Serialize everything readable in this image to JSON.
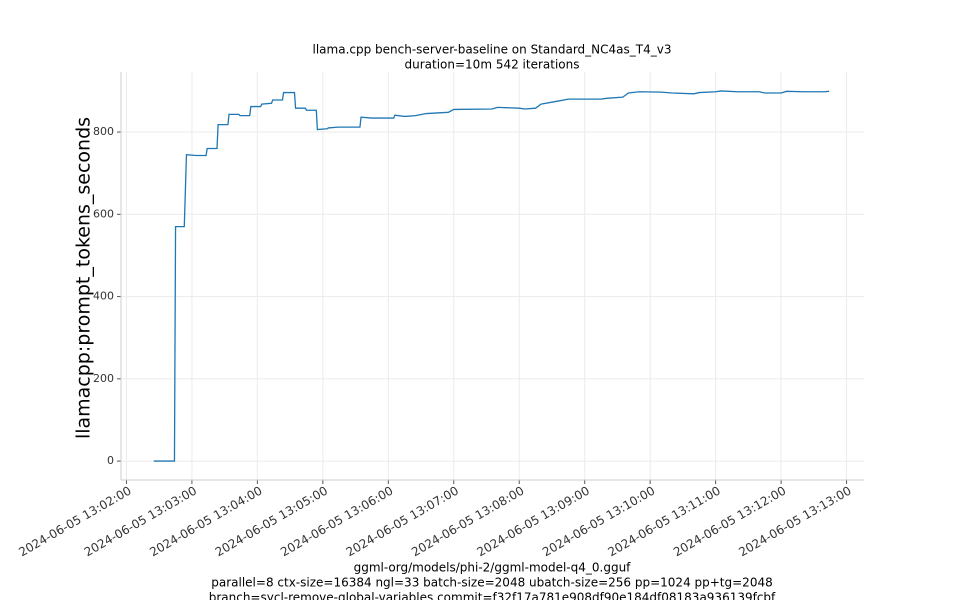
{
  "chart_data": {
    "type": "line",
    "title": "llama.cpp bench-server-baseline on Standard_NC4as_T4_v3",
    "subtitle": "duration=10m 542 iterations",
    "y_label": "llamacpp:prompt_tokens_seconds",
    "footer": [
      "ggml-org/models/phi-2/ggml-model-q4_0.gguf",
      "parallel=8 ctx-size=16384 ngl=33 batch-size=2048 ubatch-size=256 pp=1024 pp+tg=2048",
      "branch=sycl-remove-global-variables commit=f32f17a781e908df90e184df08183a936139fcbf"
    ],
    "color": "#1f77b4",
    "grid": true,
    "x": [
      "2024-06-05 13:02:25",
      "2024-06-05 13:02:44",
      "2024-06-05 13:02:45",
      "2024-06-05 13:02:53",
      "2024-06-05 13:02:55",
      "2024-06-05 13:03:04",
      "2024-06-05 13:03:13",
      "2024-06-05 13:03:14",
      "2024-06-05 13:03:23",
      "2024-06-05 13:03:24",
      "2024-06-05 13:03:33",
      "2024-06-05 13:03:34",
      "2024-06-05 13:03:43",
      "2024-06-05 13:03:44",
      "2024-06-05 13:03:53",
      "2024-06-05 13:03:54",
      "2024-06-05 13:04:03",
      "2024-06-05 13:04:04",
      "2024-06-05 13:04:13",
      "2024-06-05 13:04:14",
      "2024-06-05 13:04:23",
      "2024-06-05 13:04:24",
      "2024-06-05 13:04:34",
      "2024-06-05 13:04:35",
      "2024-06-05 13:04:44",
      "2024-06-05 13:04:45",
      "2024-06-05 13:04:54",
      "2024-06-05 13:04:55",
      "2024-06-05 13:05:04",
      "2024-06-05 13:05:05",
      "2024-06-05 13:05:14",
      "2024-06-05 13:05:34",
      "2024-06-05 13:05:35",
      "2024-06-05 13:05:45",
      "2024-06-05 13:06:05",
      "2024-06-05 13:06:06",
      "2024-06-05 13:06:15",
      "2024-06-05 13:06:25",
      "2024-06-05 13:06:35",
      "2024-06-05 13:06:55",
      "2024-06-05 13:07:00",
      "2024-06-05 13:07:35",
      "2024-06-05 13:07:40",
      "2024-06-05 13:08:00",
      "2024-06-05 13:08:05",
      "2024-06-05 13:08:15",
      "2024-06-05 13:08:20",
      "2024-06-05 13:08:35",
      "2024-06-05 13:08:45",
      "2024-06-05 13:09:15",
      "2024-06-05 13:09:20",
      "2024-06-05 13:09:35",
      "2024-06-05 13:09:40",
      "2024-06-05 13:09:50",
      "2024-06-05 13:10:10",
      "2024-06-05 13:10:20",
      "2024-06-05 13:10:40",
      "2024-06-05 13:10:45",
      "2024-06-05 13:11:00",
      "2024-06-05 13:11:05",
      "2024-06-05 13:11:20",
      "2024-06-05 13:11:40",
      "2024-06-05 13:11:45",
      "2024-06-05 13:12:00",
      "2024-06-05 13:12:05",
      "2024-06-05 13:12:20",
      "2024-06-05 13:12:40",
      "2024-06-05 13:12:44"
    ],
    "values": [
      0,
      0,
      570,
      570,
      745,
      743,
      743,
      760,
      760,
      818,
      818,
      843,
      843,
      840,
      840,
      862,
      862,
      868,
      870,
      878,
      878,
      896,
      896,
      858,
      858,
      853,
      853,
      806,
      808,
      810,
      812,
      812,
      836,
      834,
      834,
      841,
      838,
      840,
      845,
      848,
      855,
      856,
      860,
      858,
      856,
      858,
      868,
      875,
      880,
      880,
      882,
      885,
      895,
      898,
      897,
      895,
      893,
      896,
      898,
      900,
      898,
      898,
      895,
      895,
      899,
      898,
      898,
      899
    ],
    "xlim": [
      "2024-06-05 13:01:55",
      "2024-06-05 13:13:16"
    ],
    "xticks": [
      "2024-06-05 13:02:00",
      "2024-06-05 13:03:00",
      "2024-06-05 13:04:00",
      "2024-06-05 13:05:00",
      "2024-06-05 13:06:00",
      "2024-06-05 13:07:00",
      "2024-06-05 13:08:00",
      "2024-06-05 13:09:00",
      "2024-06-05 13:10:00",
      "2024-06-05 13:11:00",
      "2024-06-05 13:12:00",
      "2024-06-05 13:13:00"
    ],
    "ylim": [
      -46,
      946
    ],
    "yticks": [
      0,
      200,
      400,
      600,
      800
    ]
  }
}
